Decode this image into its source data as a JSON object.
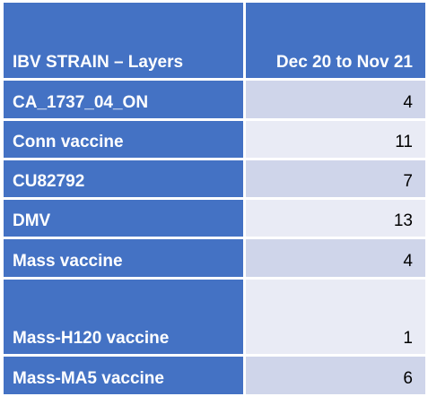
{
  "table": {
    "header": {
      "strain": "IBV STRAIN – Layers",
      "period": "Dec 20  to Nov 21"
    },
    "rows": [
      {
        "strain": "CA_1737_04_ON",
        "count": "4"
      },
      {
        "strain": "Conn vaccine",
        "count": "11"
      },
      {
        "strain": "CU82792",
        "count": "7"
      },
      {
        "strain": "DMV",
        "count": "13"
      },
      {
        "strain": "Mass vaccine",
        "count": "4"
      },
      {
        "strain": "Mass-H120 vaccine",
        "count": "1"
      },
      {
        "strain": "Mass-MA5 vaccine",
        "count": "6"
      }
    ],
    "colors": {
      "header_bg": "#4472c4",
      "row_odd_bg": "#cfd5ea",
      "row_even_bg": "#e9ebf5"
    }
  }
}
